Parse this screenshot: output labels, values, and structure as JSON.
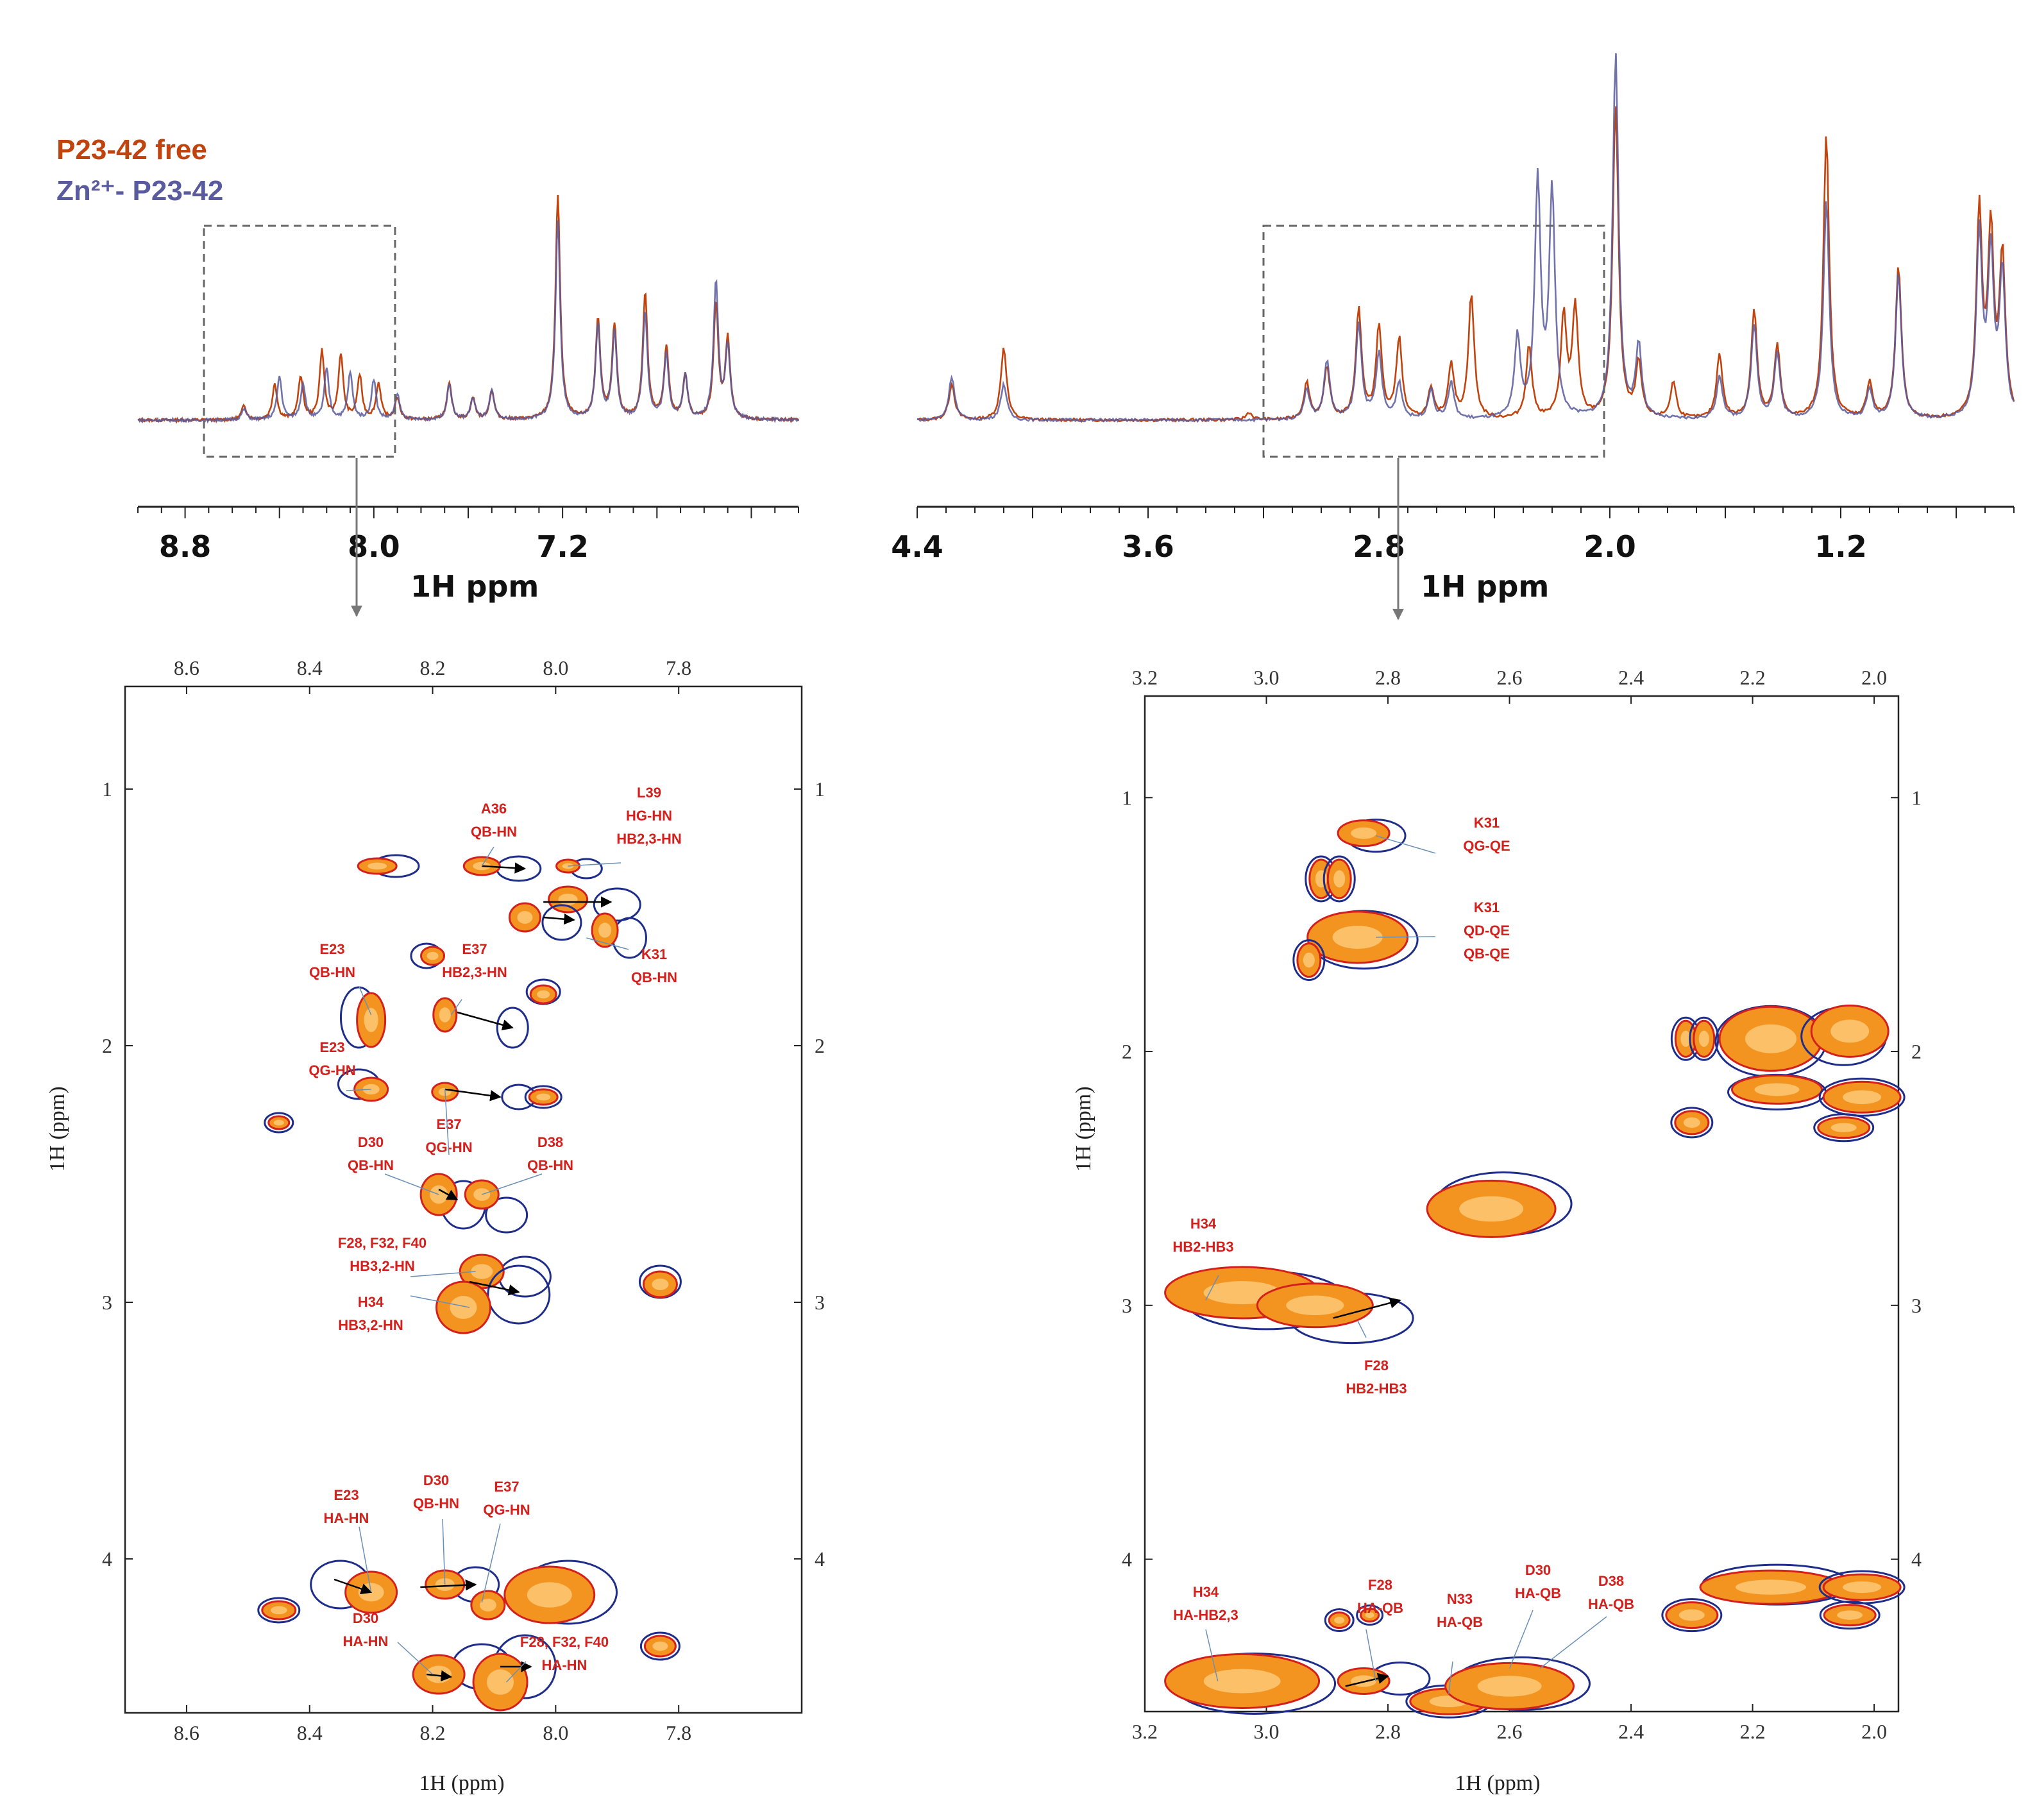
{
  "legend": {
    "free": {
      "label": "P23-42 free",
      "color": "#c1440e"
    },
    "zn": {
      "label": "Zn²⁺- P23-42",
      "color": "#5a5a9e"
    }
  },
  "chart_data": [
    {
      "type": "line",
      "panel": "1D spectrum, amide/aromatic region",
      "xlabel": "1H ppm",
      "xlim": [
        9.0,
        6.2
      ],
      "xticks": [
        "8.8",
        "8.0",
        "7.2"
      ],
      "series": [
        {
          "name": "P23-42 free",
          "peaks": [
            {
              "x": 8.55,
              "y": 0.04
            },
            {
              "x": 8.42,
              "y": 0.1
            },
            {
              "x": 8.31,
              "y": 0.12
            },
            {
              "x": 8.22,
              "y": 0.19
            },
            {
              "x": 8.14,
              "y": 0.18
            },
            {
              "x": 8.06,
              "y": 0.12
            },
            {
              "x": 7.98,
              "y": 0.1
            },
            {
              "x": 7.9,
              "y": 0.06
            },
            {
              "x": 7.68,
              "y": 0.1
            },
            {
              "x": 7.58,
              "y": 0.06
            },
            {
              "x": 7.5,
              "y": 0.08
            },
            {
              "x": 7.22,
              "y": 0.62
            },
            {
              "x": 7.05,
              "y": 0.28
            },
            {
              "x": 6.98,
              "y": 0.26
            },
            {
              "x": 6.85,
              "y": 0.35
            },
            {
              "x": 6.76,
              "y": 0.2
            },
            {
              "x": 6.68,
              "y": 0.12
            },
            {
              "x": 6.55,
              "y": 0.32
            },
            {
              "x": 6.5,
              "y": 0.22
            }
          ]
        },
        {
          "name": "Zn²⁺- P23-42",
          "peaks": [
            {
              "x": 8.55,
              "y": 0.03
            },
            {
              "x": 8.4,
              "y": 0.12
            },
            {
              "x": 8.3,
              "y": 0.1
            },
            {
              "x": 8.2,
              "y": 0.14
            },
            {
              "x": 8.1,
              "y": 0.13
            },
            {
              "x": 8.0,
              "y": 0.11
            },
            {
              "x": 7.9,
              "y": 0.07
            },
            {
              "x": 7.68,
              "y": 0.1
            },
            {
              "x": 7.58,
              "y": 0.06
            },
            {
              "x": 7.5,
              "y": 0.08
            },
            {
              "x": 7.22,
              "y": 0.55
            },
            {
              "x": 7.05,
              "y": 0.26
            },
            {
              "x": 6.98,
              "y": 0.24
            },
            {
              "x": 6.85,
              "y": 0.3
            },
            {
              "x": 6.76,
              "y": 0.18
            },
            {
              "x": 6.68,
              "y": 0.12
            },
            {
              "x": 6.55,
              "y": 0.38
            },
            {
              "x": 6.5,
              "y": 0.2
            }
          ]
        }
      ],
      "highlight_box_ppm": [
        8.72,
        7.91
      ]
    },
    {
      "type": "line",
      "panel": "1D spectrum, aliphatic region",
      "xlabel": "1H ppm",
      "xlim": [
        4.4,
        0.6
      ],
      "xticks": [
        "4.4",
        "3.6",
        "2.8",
        "2.0",
        "1.2"
      ],
      "series": [
        {
          "name": "P23-42 free",
          "peaks": [
            {
              "x": 4.28,
              "y": 0.1
            },
            {
              "x": 4.1,
              "y": 0.2
            },
            {
              "x": 3.25,
              "y": 0.02
            },
            {
              "x": 3.05,
              "y": 0.1
            },
            {
              "x": 2.98,
              "y": 0.14
            },
            {
              "x": 2.87,
              "y": 0.3
            },
            {
              "x": 2.8,
              "y": 0.25
            },
            {
              "x": 2.73,
              "y": 0.22
            },
            {
              "x": 2.62,
              "y": 0.08
            },
            {
              "x": 2.55,
              "y": 0.15
            },
            {
              "x": 2.48,
              "y": 0.34
            },
            {
              "x": 2.28,
              "y": 0.2
            },
            {
              "x": 2.16,
              "y": 0.28
            },
            {
              "x": 2.12,
              "y": 0.3
            },
            {
              "x": 1.98,
              "y": 0.86
            },
            {
              "x": 1.9,
              "y": 0.15
            },
            {
              "x": 1.78,
              "y": 0.1
            },
            {
              "x": 1.62,
              "y": 0.18
            },
            {
              "x": 1.5,
              "y": 0.3
            },
            {
              "x": 1.42,
              "y": 0.2
            },
            {
              "x": 1.25,
              "y": 0.78
            },
            {
              "x": 1.1,
              "y": 0.1
            },
            {
              "x": 1.0,
              "y": 0.42
            },
            {
              "x": 0.72,
              "y": 0.56
            },
            {
              "x": 0.68,
              "y": 0.5
            },
            {
              "x": 0.64,
              "y": 0.44
            }
          ]
        },
        {
          "name": "Zn²⁺- P23-42",
          "peaks": [
            {
              "x": 4.28,
              "y": 0.12
            },
            {
              "x": 4.1,
              "y": 0.1
            },
            {
              "x": 3.05,
              "y": 0.08
            },
            {
              "x": 2.98,
              "y": 0.16
            },
            {
              "x": 2.87,
              "y": 0.26
            },
            {
              "x": 2.8,
              "y": 0.18
            },
            {
              "x": 2.73,
              "y": 0.1
            },
            {
              "x": 2.62,
              "y": 0.08
            },
            {
              "x": 2.55,
              "y": 0.1
            },
            {
              "x": 2.32,
              "y": 0.22
            },
            {
              "x": 2.25,
              "y": 0.65
            },
            {
              "x": 2.2,
              "y": 0.62
            },
            {
              "x": 1.98,
              "y": 1.0
            },
            {
              "x": 1.9,
              "y": 0.2
            },
            {
              "x": 1.62,
              "y": 0.12
            },
            {
              "x": 1.5,
              "y": 0.26
            },
            {
              "x": 1.42,
              "y": 0.18
            },
            {
              "x": 1.25,
              "y": 0.6
            },
            {
              "x": 1.1,
              "y": 0.08
            },
            {
              "x": 1.0,
              "y": 0.4
            },
            {
              "x": 0.72,
              "y": 0.5
            },
            {
              "x": 0.68,
              "y": 0.44
            },
            {
              "x": 0.64,
              "y": 0.4
            }
          ]
        }
      ],
      "highlight_box_ppm": [
        3.2,
        2.02
      ]
    },
    {
      "type": "heatmap",
      "panel": "2D TOCSY, amide region",
      "xlabel": "1H (ppm)",
      "ylabel": "1H (ppm)",
      "xlim": [
        8.7,
        7.6
      ],
      "ylim": [
        0.6,
        4.6
      ],
      "xticks": [
        "8.6",
        "8.4",
        "8.2",
        "8.0",
        "7.8"
      ],
      "yticks": [
        "1",
        "2",
        "3",
        "4"
      ],
      "annotations": [
        {
          "lines": [
            "A36",
            "QB-HN"
          ],
          "x": 8.12,
          "y": 1.3
        },
        {
          "lines": [
            "L39",
            "HG-HN",
            "HB2,3-HN"
          ],
          "x": 7.98,
          "y": 1.3
        },
        {
          "lines": [
            "K31",
            "QB-HN"
          ],
          "x": 7.95,
          "y": 1.58
        },
        {
          "lines": [
            "E23",
            "QB-HN"
          ],
          "x": 8.3,
          "y": 1.88
        },
        {
          "lines": [
            "E37",
            "HB2,3-HN"
          ],
          "x": 8.17,
          "y": 1.88
        },
        {
          "lines": [
            "E23",
            "QG-HN"
          ],
          "x": 8.3,
          "y": 2.17
        },
        {
          "lines": [
            "E37",
            "QG-HN"
          ],
          "x": 8.18,
          "y": 2.17
        },
        {
          "lines": [
            "D30",
            "QB-HN"
          ],
          "x": 8.19,
          "y": 2.58
        },
        {
          "lines": [
            "D38",
            "QB-HN"
          ],
          "x": 8.12,
          "y": 2.58
        },
        {
          "lines": [
            "F28, F32, F40",
            "HB3,2-HN"
          ],
          "x": 8.13,
          "y": 2.88
        },
        {
          "lines": [
            "H34",
            "HB3,2-HN"
          ],
          "x": 8.14,
          "y": 3.02
        },
        {
          "lines": [
            "E23",
            "HA-HN"
          ],
          "x": 8.3,
          "y": 4.13
        },
        {
          "lines": [
            "D30",
            "QB-HN"
          ],
          "x": 8.18,
          "y": 4.1
        },
        {
          "lines": [
            "E37",
            "QG-HN"
          ],
          "x": 8.12,
          "y": 4.17
        },
        {
          "lines": [
            "D30",
            "HA-HN"
          ],
          "x": 8.2,
          "y": 4.45
        },
        {
          "lines": [
            "F28, F32, F40",
            "HA-HN"
          ],
          "x": 8.08,
          "y": 4.48
        }
      ]
    },
    {
      "type": "heatmap",
      "panel": "2D TOCSY, aliphatic region",
      "xlabel": "1H (ppm)",
      "ylabel": "1H (ppm)",
      "xlim": [
        3.2,
        1.96
      ],
      "ylim": [
        0.6,
        4.6
      ],
      "xticks": [
        "3.2",
        "3.0",
        "2.8",
        "2.6",
        "2.4",
        "2.2",
        "2.0"
      ],
      "yticks": [
        "1",
        "2",
        "3",
        "4"
      ],
      "annotations": [
        {
          "lines": [
            "K31",
            "QG-QE"
          ],
          "x": 2.82,
          "y": 1.15
        },
        {
          "lines": [
            "K31",
            "QD-QE",
            "QB-QE"
          ],
          "x": 2.82,
          "y": 1.55
        },
        {
          "lines": [
            "H34",
            "HB2-HB3"
          ],
          "x": 3.1,
          "y": 2.98
        },
        {
          "lines": [
            "F28",
            "HB2-HB3"
          ],
          "x": 2.85,
          "y": 3.06
        },
        {
          "lines": [
            "H34",
            "HA-HB2,3"
          ],
          "x": 3.08,
          "y": 4.48
        },
        {
          "lines": [
            "F28",
            "HA-QB"
          ],
          "x": 2.82,
          "y": 4.48
        },
        {
          "lines": [
            "N33",
            "HA-QB"
          ],
          "x": 2.7,
          "y": 4.53
        },
        {
          "lines": [
            "D30",
            "HA-QB"
          ],
          "x": 2.6,
          "y": 4.43
        },
        {
          "lines": [
            "D38",
            "HA-QB"
          ],
          "x": 2.55,
          "y": 4.43
        }
      ]
    }
  ]
}
